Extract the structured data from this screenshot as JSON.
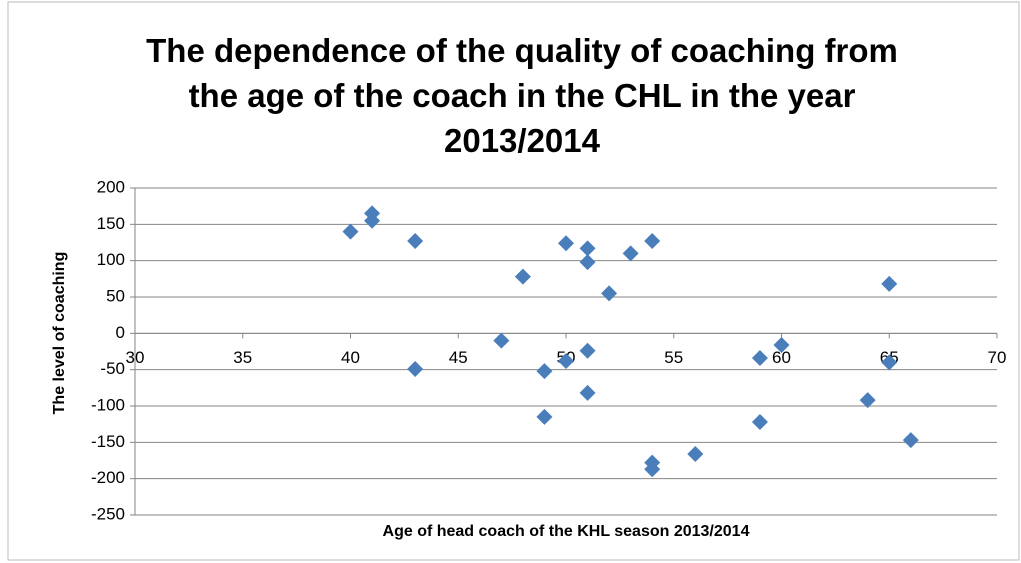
{
  "chart_data": {
    "type": "scatter",
    "title": "The dependence of the quality of coaching from the age of the coach in the CHL in the year 2013/2014",
    "x_label": "Age of head coach of the KHL season 2013/2014",
    "y_label": "The level of coaching",
    "color": "#4a7ebb",
    "grid": true,
    "xlim": [
      30,
      70
    ],
    "xticks": [
      30,
      35,
      40,
      45,
      50,
      55,
      60,
      65,
      70
    ],
    "ylim": [
      -250,
      200
    ],
    "yticks": [
      -250,
      -200,
      -150,
      -100,
      -50,
      0,
      50,
      100,
      150,
      200
    ],
    "x": [
      40,
      41,
      41,
      43,
      43,
      47,
      48,
      49,
      49,
      50,
      50,
      51,
      51,
      51,
      51,
      52,
      53,
      54,
      54,
      54,
      56,
      59,
      59,
      60,
      64,
      65,
      65,
      66
    ],
    "values": [
      140,
      165,
      155,
      127,
      -49,
      -10,
      78,
      -52,
      -115,
      124,
      -38,
      117,
      98,
      -24,
      -82,
      55,
      110,
      127,
      -178,
      -187,
      -166,
      -34,
      -122,
      -16,
      -92,
      68,
      -40,
      -147
    ]
  }
}
